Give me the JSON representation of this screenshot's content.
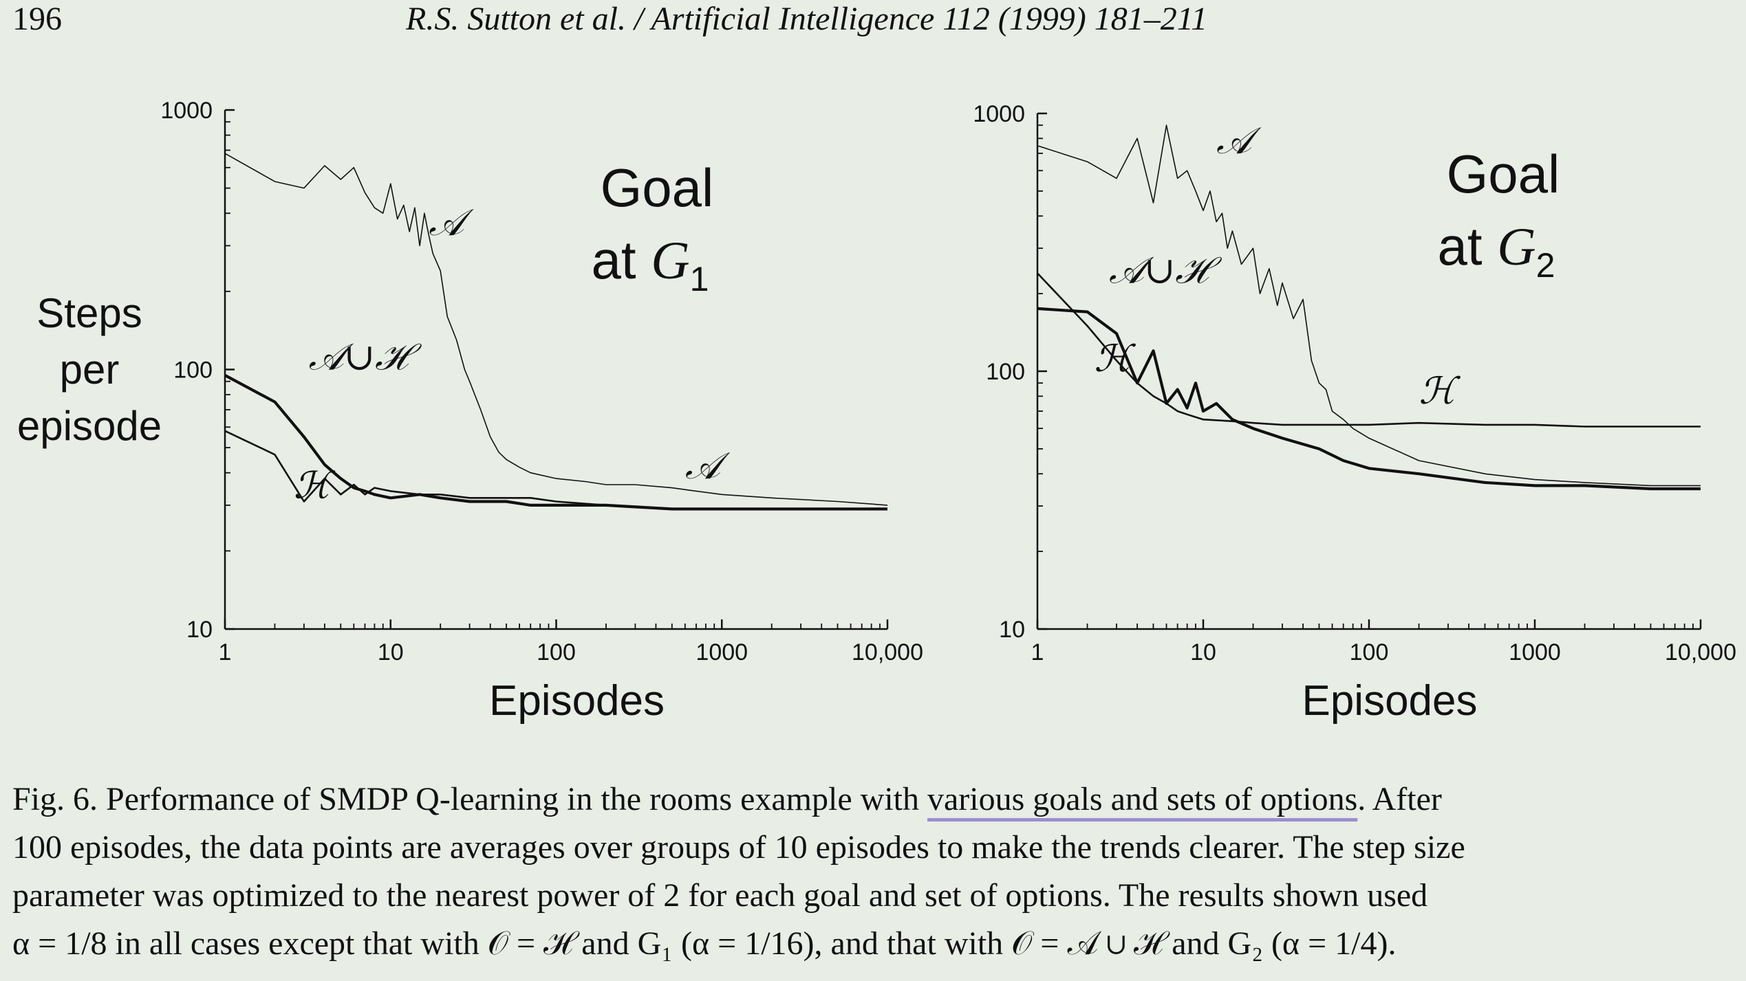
{
  "header": {
    "page_number": "196",
    "running_head": "R.S. Sutton et al. / Artificial Intelligence 112 (1999) 181–211"
  },
  "shared_ylabel": [
    "Steps",
    "per",
    "episode"
  ],
  "chart_data": [
    {
      "type": "line",
      "panel": "left",
      "annotation": [
        "Goal",
        "at G",
        "1"
      ],
      "xlabel": "Episodes",
      "ylabel": "Steps per episode",
      "xscale": "log",
      "yscale": "log",
      "xlim": [
        1,
        10000
      ],
      "ylim": [
        10,
        1000
      ],
      "x_ticks": [
        "1",
        "10",
        "100",
        "1000",
        "10,000"
      ],
      "y_ticks": [
        "10",
        "100",
        "1000"
      ],
      "grid": false,
      "series": [
        {
          "name": "𝒜",
          "label_points": [
            [
              17,
              330
            ],
            [
              600,
              38
            ]
          ],
          "x": [
            1,
            2,
            3,
            4,
            5,
            6,
            7,
            8,
            9,
            10,
            11,
            12,
            13,
            14,
            15,
            16,
            17,
            18,
            20,
            22,
            25,
            28,
            30,
            35,
            40,
            45,
            50,
            60,
            70,
            100,
            150,
            200,
            300,
            500,
            700,
            1000,
            2000,
            5000,
            10000
          ],
          "values": [
            680,
            530,
            500,
            610,
            540,
            600,
            480,
            420,
            400,
            520,
            380,
            430,
            340,
            420,
            300,
            400,
            330,
            280,
            240,
            160,
            130,
            100,
            90,
            70,
            55,
            48,
            45,
            42,
            40,
            38,
            37,
            36,
            36,
            35,
            34,
            33,
            32,
            31,
            30
          ]
        },
        {
          "name": "𝒜∪ℋ",
          "label_points": [
            [
              3.2,
              100
            ]
          ],
          "x": [
            1,
            2,
            3,
            4,
            5,
            6,
            7,
            8,
            10,
            15,
            20,
            30,
            50,
            70,
            100,
            200,
            500,
            1000,
            2000,
            5000,
            10000
          ],
          "values": [
            95,
            75,
            55,
            43,
            38,
            35,
            34,
            33,
            32,
            33,
            32,
            31,
            31,
            30,
            30,
            30,
            29,
            29,
            29,
            29,
            29
          ]
        },
        {
          "name": "ℋ",
          "label_points": [
            [
              2.6,
              32
            ]
          ],
          "x": [
            1,
            2,
            3,
            4,
            5,
            6,
            7,
            8,
            10,
            15,
            20,
            30,
            50,
            70,
            100,
            200,
            500,
            1000,
            2000,
            5000,
            10000
          ],
          "values": [
            58,
            47,
            31,
            38,
            33,
            36,
            33,
            35,
            34,
            33,
            33,
            32,
            32,
            32,
            31,
            30,
            29,
            29,
            29,
            29,
            29
          ]
        }
      ]
    },
    {
      "type": "line",
      "panel": "right",
      "annotation": [
        "Goal",
        "at G",
        "2"
      ],
      "xlabel": "Episodes",
      "xscale": "log",
      "yscale": "log",
      "xlim": [
        1,
        10000
      ],
      "ylim": [
        10,
        1000
      ],
      "x_ticks": [
        "1",
        "10",
        "100",
        "1000",
        "10,000"
      ],
      "y_ticks": [
        "10",
        "100",
        "1000"
      ],
      "grid": false,
      "series": [
        {
          "name": "𝒜",
          "label_points": [
            [
              12,
              700
            ]
          ],
          "x": [
            1,
            2,
            3,
            4,
            5,
            6,
            7,
            8,
            9,
            10,
            11,
            12,
            13,
            14,
            15,
            17,
            20,
            22,
            25,
            28,
            30,
            35,
            40,
            45,
            50,
            55,
            60,
            70,
            80,
            100,
            200,
            500,
            1000,
            2000,
            5000,
            10000
          ],
          "values": [
            750,
            650,
            560,
            800,
            450,
            900,
            560,
            600,
            500,
            420,
            500,
            380,
            410,
            300,
            350,
            260,
            300,
            200,
            250,
            180,
            220,
            160,
            190,
            110,
            90,
            85,
            70,
            65,
            60,
            55,
            45,
            40,
            38,
            37,
            36,
            36
          ]
        },
        {
          "name": "𝒜∪ℋ",
          "label_points": [
            [
              2.7,
              220
            ]
          ],
          "x": [
            1,
            2,
            3,
            4,
            5,
            6,
            7,
            8,
            9,
            10,
            12,
            15,
            20,
            30,
            50,
            70,
            100,
            200,
            500,
            1000,
            2000,
            5000,
            10000
          ],
          "values": [
            175,
            170,
            140,
            90,
            120,
            75,
            85,
            72,
            90,
            70,
            75,
            65,
            60,
            55,
            50,
            45,
            42,
            40,
            37,
            36,
            36,
            35,
            35
          ]
        },
        {
          "name": "ℋ",
          "label_points": [
            [
              2.2,
              100
            ],
            [
              200,
              75
            ]
          ],
          "x": [
            1,
            2,
            3,
            4,
            5,
            6,
            7,
            8,
            10,
            15,
            20,
            30,
            50,
            70,
            100,
            200,
            500,
            1000,
            2000,
            5000,
            10000
          ],
          "values": [
            240,
            150,
            110,
            90,
            80,
            75,
            70,
            68,
            65,
            64,
            63,
            62,
            62,
            62,
            62,
            63,
            62,
            62,
            61,
            61,
            61
          ]
        }
      ]
    }
  ],
  "caption": {
    "lines": [
      {
        "before": "Fig. 6. Performance of SMDP Q-learning in the rooms example with ",
        "underlined": "various goals and sets of options",
        "after": ". After"
      },
      {
        "before": "100 episodes, the data points are averages over groups of 10 episodes to make the trends clearer. The step size",
        "underlined": "",
        "after": ""
      },
      {
        "before": "parameter was optimized to the nearest power of 2 for each goal and set of options. The results shown used",
        "underlined": "",
        "after": ""
      },
      {
        "before": "α = 1/8 in all cases except that with 𝒪 = ℋ and G₁ (α = 1/16), and that with 𝒪 = 𝒜 ∪ ℋ and G₂ (α = 1/4).",
        "underlined": "",
        "after": ""
      }
    ]
  }
}
